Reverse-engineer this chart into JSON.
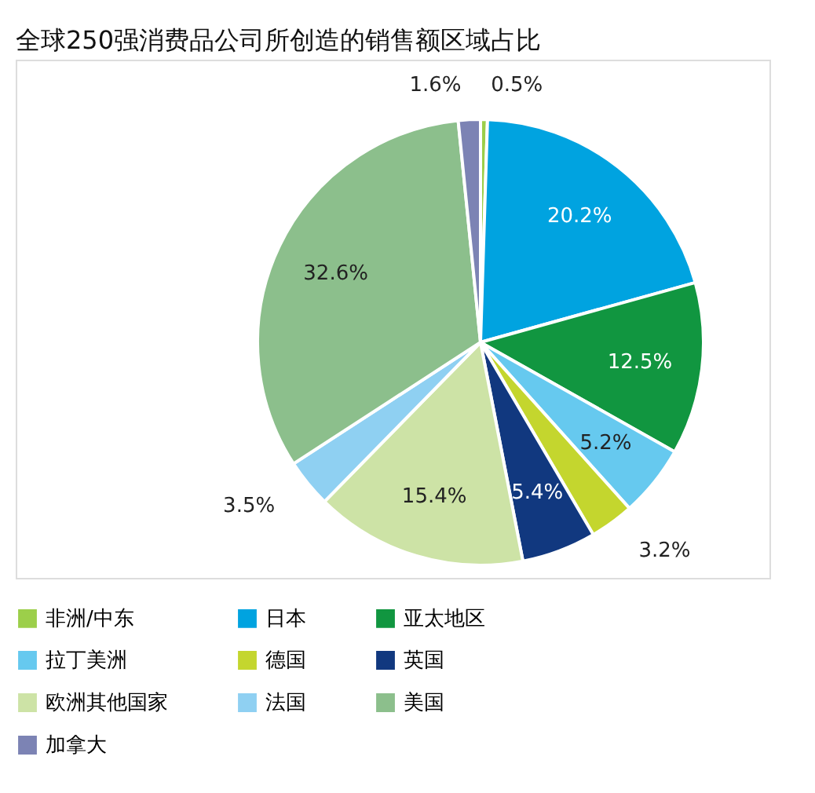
{
  "chart_data": {
    "type": "pie",
    "title": "全球250强消费品公司所创造的销售额区域占比",
    "categories": [
      "非洲/中东",
      "日本",
      "亚太地区",
      "拉丁美洲",
      "德国",
      "英国",
      "欧洲其他国家",
      "法国",
      "美国",
      "加拿大"
    ],
    "values": [
      0.5,
      20.2,
      12.5,
      5.2,
      3.2,
      5.4,
      15.4,
      3.5,
      32.6,
      1.6
    ],
    "value_labels": [
      "0.5%",
      "20.2%",
      "12.5%",
      "5.2%",
      "3.2%",
      "5.4%",
      "15.4%",
      "3.5%",
      "32.6%",
      "1.6%"
    ],
    "colors": [
      "#9ccf4a",
      "#00a3e0",
      "#119640",
      "#66c9ef",
      "#c4d62e",
      "#11387f",
      "#cde3a6",
      "#8fd0f2",
      "#8cbf8c",
      "#7c83b4"
    ],
    "legend": "bottom"
  }
}
